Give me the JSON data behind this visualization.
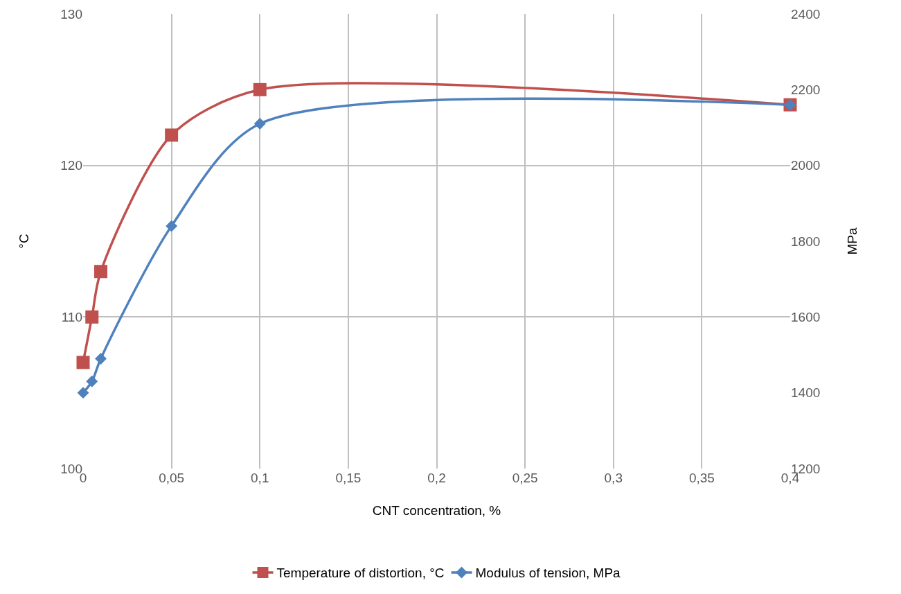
{
  "chart_data": {
    "type": "line",
    "xlabel": "CNT concentration, %",
    "ylabel": "°C",
    "y2label": "MPa",
    "x": [
      0,
      0.005,
      0.01,
      0.05,
      0.1,
      0.4
    ],
    "series": [
      {
        "name": "Temperature of distortion, °C",
        "color": "#c0504d",
        "values": [
          107,
          110,
          113,
          122,
          125,
          124
        ],
        "marker": "square"
      },
      {
        "name": "Modulus of tension, MPa",
        "color": "#4f81bd",
        "values": [
          1400,
          1430,
          1490,
          1840,
          2110,
          2160
        ],
        "marker": "diamond",
        "axis": "y2"
      }
    ],
    "xlim": [
      0,
      0.4
    ],
    "xticks": [
      0,
      {
        "value": 0.05,
        "label": "0,05"
      },
      {
        "value": 0.1,
        "label": "0,1"
      },
      {
        "value": 0.15,
        "label": "0,15"
      },
      {
        "value": 0.2,
        "label": "0,2"
      },
      {
        "value": 0.25,
        "label": "0,25"
      },
      {
        "value": 0.3,
        "label": "0,3"
      },
      {
        "value": 0.35,
        "label": "0,35"
      },
      {
        "value": 0.4,
        "label": "0,4"
      }
    ],
    "ylim": [
      100,
      130
    ],
    "yticks": [
      100,
      110,
      120,
      130
    ],
    "y2lim": [
      1200,
      2400
    ],
    "y2ticks": [
      1200,
      1400,
      1600,
      1800,
      2000,
      2200,
      2400
    ],
    "grid": true,
    "legend": "bottom",
    "line_style": "solid"
  }
}
